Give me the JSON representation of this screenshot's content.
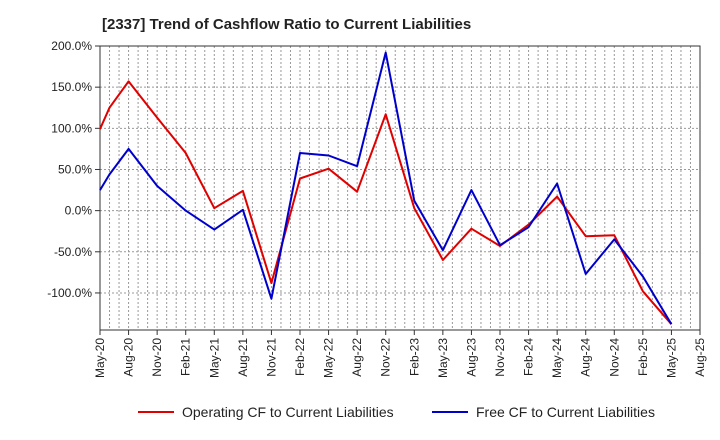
{
  "chart_data": {
    "type": "line",
    "title": "[2337]  Trend of Cashflow Ratio to Current Liabilities",
    "xlabel": "",
    "ylabel": "",
    "x_ticks": [
      "May-20",
      "Aug-20",
      "Nov-20",
      "Feb-21",
      "May-21",
      "Aug-21",
      "Nov-21",
      "Feb-22",
      "May-22",
      "Aug-22",
      "Nov-22",
      "Feb-23",
      "May-23",
      "Aug-23",
      "Nov-23",
      "Feb-24",
      "May-24",
      "Aug-24",
      "Nov-24",
      "Feb-25",
      "May-25",
      "Aug-25"
    ],
    "y_ticks": [
      "200.0%",
      "150.0%",
      "100.0%",
      "50.0%",
      "0.0%",
      "-50.0%",
      "-100.0%"
    ],
    "ylim": [
      -145,
      200
    ],
    "xlim": [
      "May-20",
      "Aug-25"
    ],
    "grid": true,
    "legend_position": "bottom",
    "series": [
      {
        "name": "Operating CF to Current Liabilities",
        "color": "#e00000",
        "points": [
          {
            "x": "May-20",
            "y": 99
          },
          {
            "x": "Jun-20",
            "y": 125
          },
          {
            "x": "Aug-20",
            "y": 157
          },
          {
            "x": "Nov-20",
            "y": 113
          },
          {
            "x": "Feb-21",
            "y": 70
          },
          {
            "x": "May-21",
            "y": 3
          },
          {
            "x": "Aug-21",
            "y": 24
          },
          {
            "x": "Nov-21",
            "y": -88
          },
          {
            "x": "Feb-22",
            "y": 39
          },
          {
            "x": "May-22",
            "y": 51
          },
          {
            "x": "Aug-22",
            "y": 23
          },
          {
            "x": "Nov-22",
            "y": 117
          },
          {
            "x": "Feb-23",
            "y": 3
          },
          {
            "x": "May-23",
            "y": -60
          },
          {
            "x": "Aug-23",
            "y": -22
          },
          {
            "x": "Nov-23",
            "y": -43
          },
          {
            "x": "Feb-24",
            "y": -17
          },
          {
            "x": "May-24",
            "y": 17
          },
          {
            "x": "Aug-24",
            "y": -31
          },
          {
            "x": "Nov-24",
            "y": -30
          },
          {
            "x": "Feb-25",
            "y": -98
          },
          {
            "x": "May-25",
            "y": -138
          }
        ]
      },
      {
        "name": "Free CF to Current Liabilities",
        "color": "#0000cc",
        "points": [
          {
            "x": "May-20",
            "y": 25
          },
          {
            "x": "Jun-20",
            "y": 44
          },
          {
            "x": "Aug-20",
            "y": 75
          },
          {
            "x": "Nov-20",
            "y": 30
          },
          {
            "x": "Feb-21",
            "y": 0
          },
          {
            "x": "May-21",
            "y": -23
          },
          {
            "x": "Aug-21",
            "y": 1
          },
          {
            "x": "Nov-21",
            "y": -107
          },
          {
            "x": "Feb-22",
            "y": 70
          },
          {
            "x": "May-22",
            "y": 67
          },
          {
            "x": "Aug-22",
            "y": 54
          },
          {
            "x": "Nov-22",
            "y": 192
          },
          {
            "x": "Feb-23",
            "y": 12
          },
          {
            "x": "May-23",
            "y": -48
          },
          {
            "x": "Aug-23",
            "y": 25
          },
          {
            "x": "Nov-23",
            "y": -42
          },
          {
            "x": "Feb-24",
            "y": -20
          },
          {
            "x": "May-24",
            "y": 33
          },
          {
            "x": "Aug-24",
            "y": -77
          },
          {
            "x": "Nov-24",
            "y": -35
          },
          {
            "x": "Feb-25",
            "y": -80
          },
          {
            "x": "May-25",
            "y": -138
          }
        ]
      }
    ]
  }
}
